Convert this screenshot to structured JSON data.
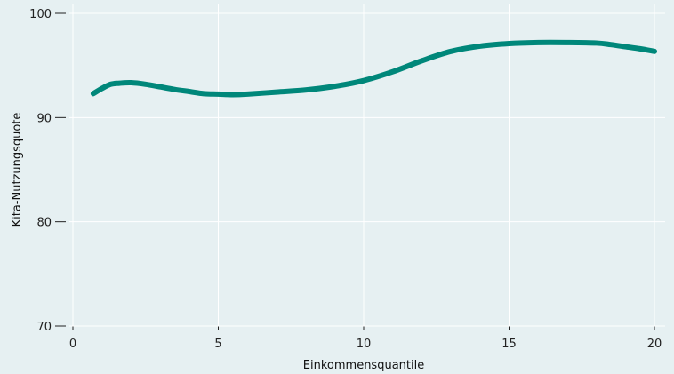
{
  "chart_data": {
    "type": "line",
    "title": "",
    "xlabel": "Einkommensquantile",
    "ylabel": "Kita-Nutzungsquote",
    "xlim": [
      0,
      20
    ],
    "ylim": [
      70,
      100
    ],
    "x_ticks": [
      0,
      5,
      10,
      15,
      20
    ],
    "y_ticks": [
      70,
      80,
      90,
      100
    ],
    "x_tick_labels": [
      "0",
      "5",
      "10",
      "15",
      "20"
    ],
    "y_tick_labels": [
      "70",
      "80",
      "90",
      "100"
    ],
    "grid": "vertical",
    "line_color": "#00877a",
    "series": [
      {
        "x": [
          0.7,
          1.0,
          1.3,
          1.6,
          2.0,
          2.5,
          3.0,
          3.5,
          4.0,
          4.5,
          5.0,
          5.5,
          6.0,
          7.0,
          8.0,
          9.0,
          10.0,
          11.0,
          12.0,
          13.0,
          14.0,
          15.0,
          16.0,
          17.0,
          18.0,
          18.5,
          19.0,
          19.5,
          20.0
        ],
        "y": [
          92.3,
          92.8,
          93.2,
          93.3,
          93.35,
          93.2,
          92.95,
          92.7,
          92.5,
          92.3,
          92.25,
          92.2,
          92.25,
          92.45,
          92.65,
          93.0,
          93.55,
          94.4,
          95.45,
          96.35,
          96.85,
          97.1,
          97.2,
          97.2,
          97.15,
          97.0,
          96.8,
          96.6,
          96.35
        ]
      }
    ]
  }
}
